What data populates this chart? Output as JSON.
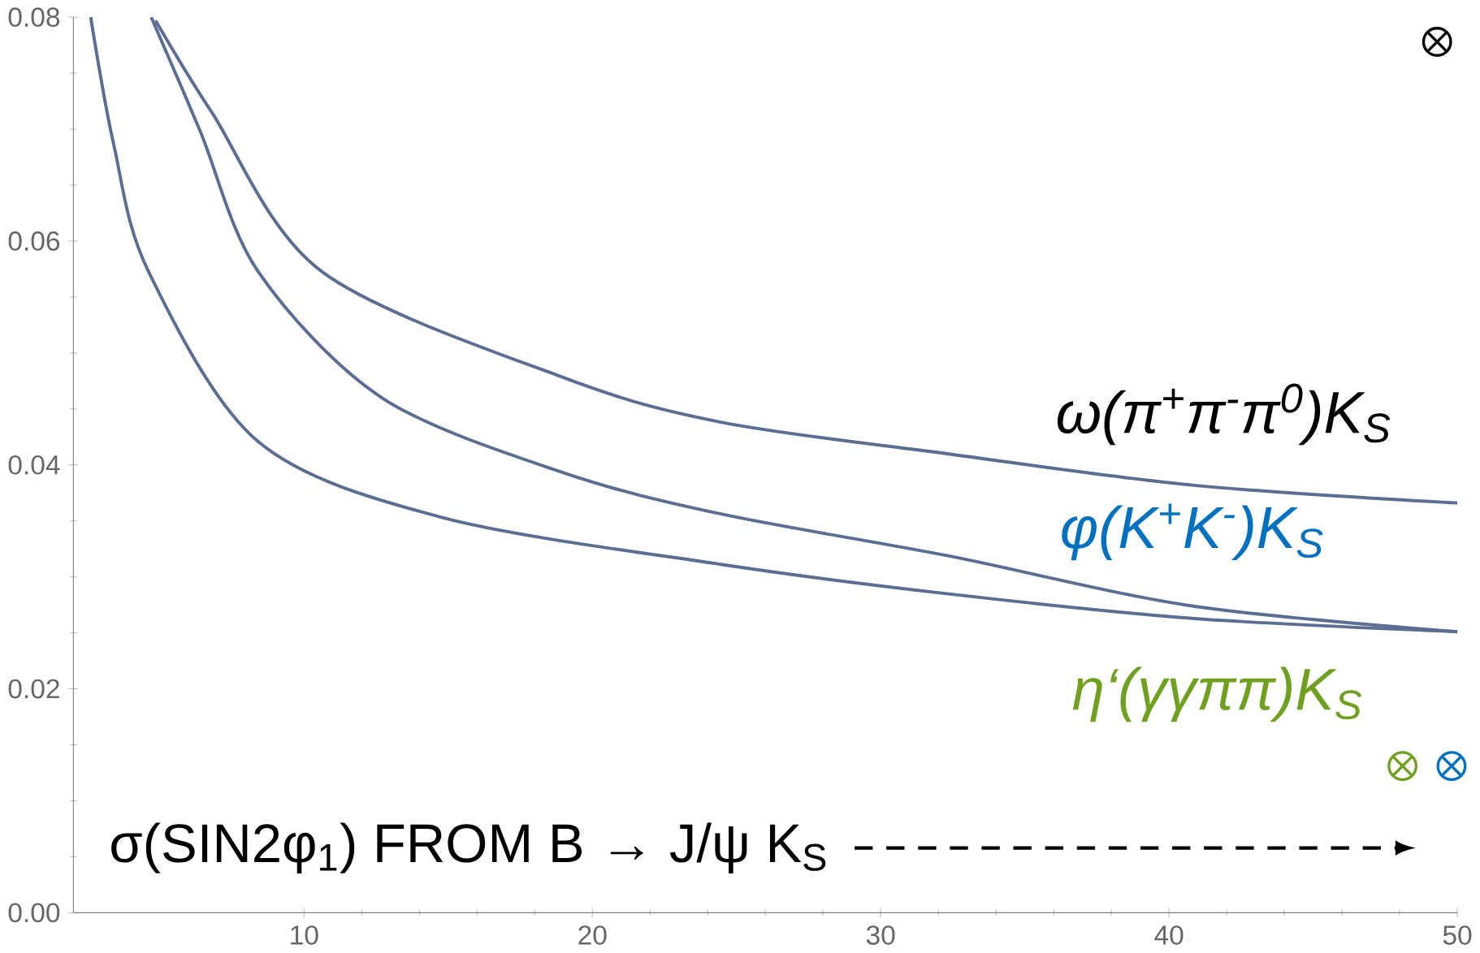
{
  "chart_data": {
    "type": "line",
    "xlim": [
      2,
      50
    ],
    "ylim": [
      0,
      0.08
    ],
    "xticks": [
      10,
      20,
      30,
      40,
      50
    ],
    "yticks": [
      {
        "value": 0,
        "label": "0.00"
      },
      {
        "value": 0.02,
        "label": "0.02"
      },
      {
        "value": 0.04,
        "label": "0.04"
      },
      {
        "value": 0.06,
        "label": "0.06"
      },
      {
        "value": 0.08,
        "label": "0.08"
      }
    ],
    "grid": false,
    "marker": "none",
    "series": [
      {
        "name": "ω(π$^{+}$π$^{-}$π$^{0}$)K$_{S}$",
        "color": "#5b6d92",
        "x": [
          4.85,
          6.8,
          10.6,
          19.0,
          24.5,
          32.3,
          40.8,
          50
        ],
        "values": [
          0.0797,
          0.0715,
          0.0573,
          0.0478,
          0.0438,
          0.041,
          0.0382,
          0.0366
        ]
      },
      {
        "name": "φ(K$^{+}$K$^{-}$)K$_{S}$",
        "color": "#5b6d92",
        "x": [
          4.7,
          6.4,
          8.4,
          12.7,
          19.0,
          24.5,
          32.3,
          40.8,
          50
        ],
        "values": [
          0.08,
          0.0698,
          0.0573,
          0.046,
          0.0393,
          0.0356,
          0.0319,
          0.0274,
          0.0251
        ]
      },
      {
        "name": "η‘(γγππ)K$_{S}$",
        "color": "#5b6d92",
        "x": [
          2.6,
          3.4,
          4.6,
          8.4,
          14.8,
          24.5,
          32.3,
          40.8,
          50
        ],
        "values": [
          0.08,
          0.0686,
          0.0573,
          0.0421,
          0.0353,
          0.0311,
          0.0285,
          0.0263,
          0.0251
        ]
      },
      {
        "type": "scatter",
        "marker": "cross",
        "color": "#000000",
        "x": [
          49.3
        ],
        "values": [
          0.0778
        ]
      },
      {
        "type": "scatter",
        "marker": "cross",
        "color": "#70a020",
        "x": [
          48.1
        ],
        "values": [
          0.0131
        ]
      },
      {
        "type": "scatter",
        "marker": "cross",
        "color": "#0070c0",
        "x": [
          49.8
        ],
        "values": [
          0.0131
        ]
      }
    ],
    "annotations": [
      "σ(SIN2φ$_{1}$) FROM B → J/ψ K$_{S}$"
    ]
  }
}
